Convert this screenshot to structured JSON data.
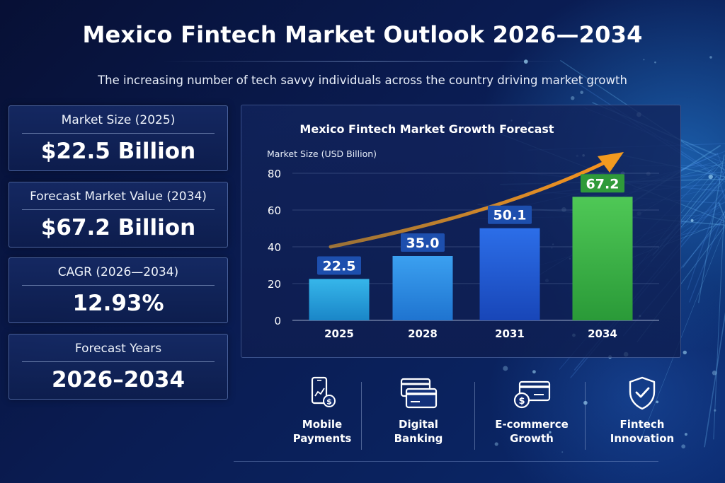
{
  "title": "Mexico Fintech Market Outlook 2026—2034",
  "subtitle": "The increasing number of tech savvy individuals across the country driving market growth",
  "stats": [
    {
      "label": "Market Size (2025)",
      "value": "$22.5 Billion"
    },
    {
      "label": "Forecast Market Value (2034)",
      "value": "$67.2 Billion"
    },
    {
      "label": "CAGR (2026—2034)",
      "value": "12.93%"
    },
    {
      "label": "Forecast Years",
      "value": "2026–2034"
    }
  ],
  "chart_data": {
    "type": "bar",
    "title": "Mexico Fintech Market Growth Forecast",
    "ylabel": "Market Size (USD Billion)",
    "xlabel": "",
    "categories": [
      "2025",
      "2028",
      "2031",
      "2034"
    ],
    "values": [
      22.5,
      35.0,
      50.1,
      67.2
    ],
    "value_labels": [
      "22.5",
      "35.0",
      "50.1",
      "67.2"
    ],
    "ylim": [
      0,
      80
    ],
    "yticks": [
      0,
      20,
      40,
      60,
      80
    ],
    "grid": true,
    "annotations": [
      "upward trend arrow"
    ]
  },
  "features": [
    {
      "icon": "mobile-payment-icon",
      "line1": "Mobile",
      "line2": "Payments"
    },
    {
      "icon": "digital-banking-icon",
      "line1": "Digital",
      "line2": "Banking"
    },
    {
      "icon": "ecommerce-card-icon",
      "line1": "E-commerce",
      "line2": "Growth"
    },
    {
      "icon": "shield-check-icon",
      "line1": "Fintech",
      "line2": "Innovation"
    }
  ],
  "colors": {
    "bar_2025": "#2aa3dc",
    "bar_2028": "#2c8ee6",
    "bar_2031": "#1f5fd6",
    "bar_2034": "#3cb44a",
    "label_blue": "#1d4fae",
    "label_green": "#2f9a3a",
    "arrow": "#f29a1f"
  }
}
